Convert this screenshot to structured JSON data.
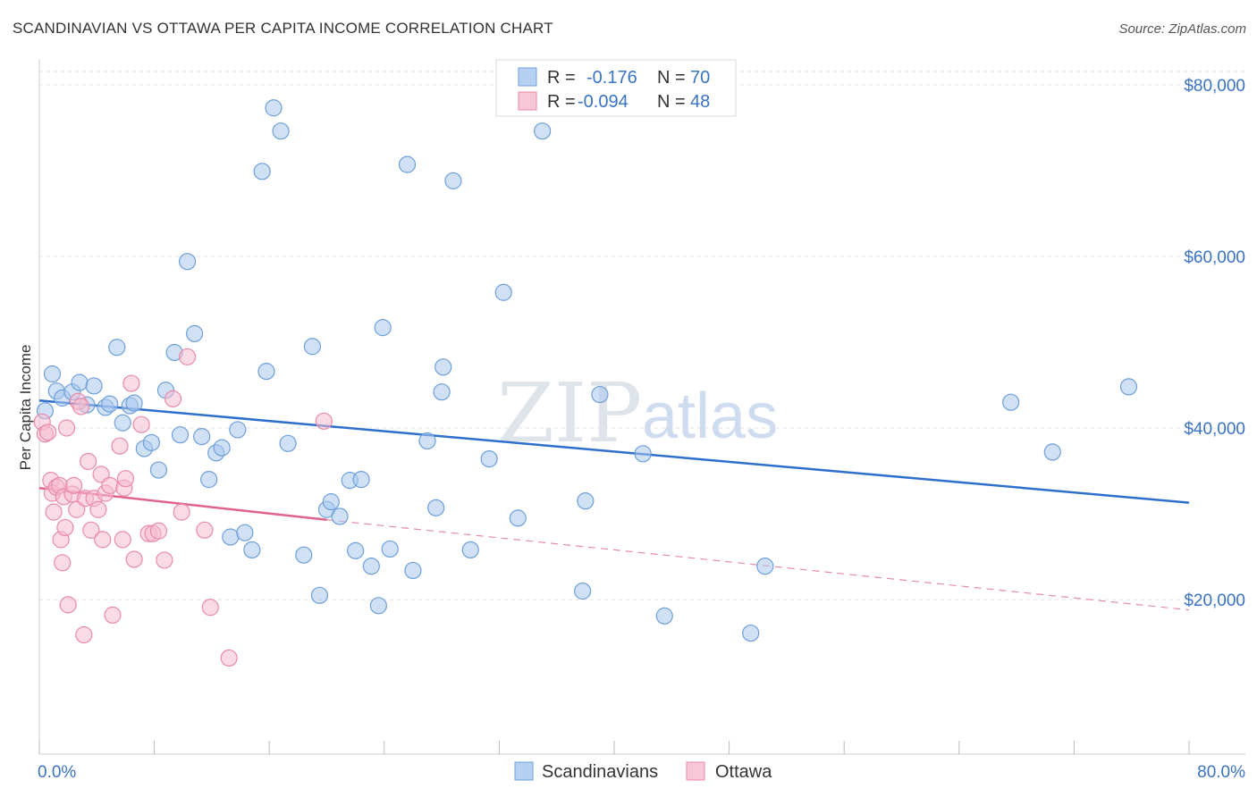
{
  "title": "SCANDINAVIAN VS OTTAWA PER CAPITA INCOME CORRELATION CHART",
  "source": "Source: ZipAtlas.com",
  "watermark": {
    "zip": "ZIP",
    "atlas": "atlas"
  },
  "legend_top": [
    {
      "r_label": "R =",
      "r_value": "-0.176",
      "n_label": "N =",
      "n_value": "70",
      "color": "#a9c8ef",
      "stroke": "#6e9fd9"
    },
    {
      "r_label": "R =",
      "r_value": "-0.094",
      "n_label": "N =",
      "n_value": "48",
      "color": "#f6bcd0",
      "stroke": "#e88aa9"
    }
  ],
  "legend_bottom": [
    {
      "label": "Scandinavians",
      "color": "#a9c8ef",
      "stroke": "#6e9fd9"
    },
    {
      "label": "Ottawa",
      "color": "#f6bcd0",
      "stroke": "#e88aa9"
    }
  ],
  "chart_data": {
    "type": "scatter",
    "title": "SCANDINAVIAN VS OTTAWA PER CAPITA INCOME CORRELATION CHART",
    "xlabel": "",
    "ylabel": "Per Capita Income",
    "xlim": [
      0,
      80
    ],
    "ylim": [
      2000,
      83000
    ],
    "x_tick_labels": [
      "0.0%",
      "80.0%"
    ],
    "y_ticks": [
      20000,
      40000,
      60000,
      80000
    ],
    "y_tick_labels": [
      "$20,000",
      "$40,000",
      "$60,000",
      "$80,000"
    ],
    "grid": true,
    "legend_position": "top-center",
    "series": [
      {
        "name": "Scandinavians",
        "color": "#a9c8ef",
        "stroke": "#6e9fd9",
        "trend": {
          "x": [
            0,
            80
          ],
          "y": [
            43200,
            31300
          ],
          "color": "#2f6fcc"
        },
        "points": [
          [
            0.4,
            42000
          ],
          [
            0.9,
            46300
          ],
          [
            1.2,
            44300
          ],
          [
            1.6,
            43500
          ],
          [
            2.3,
            44200
          ],
          [
            2.8,
            45300
          ],
          [
            3.3,
            42700
          ],
          [
            3.8,
            44900
          ],
          [
            4.6,
            42400
          ],
          [
            4.9,
            42800
          ],
          [
            5.4,
            49400
          ],
          [
            5.8,
            40600
          ],
          [
            6.3,
            42600
          ],
          [
            6.6,
            42900
          ],
          [
            7.3,
            37600
          ],
          [
            7.8,
            38300
          ],
          [
            8.3,
            35100
          ],
          [
            8.8,
            44400
          ],
          [
            9.4,
            48800
          ],
          [
            9.8,
            39200
          ],
          [
            10.3,
            59400
          ],
          [
            10.8,
            51000
          ],
          [
            11.3,
            39000
          ],
          [
            11.8,
            34000
          ],
          [
            12.3,
            37100
          ],
          [
            12.7,
            37700
          ],
          [
            13.3,
            27300
          ],
          [
            13.8,
            39800
          ],
          [
            14.3,
            27800
          ],
          [
            14.8,
            25800
          ],
          [
            15.5,
            69900
          ],
          [
            15.8,
            46600
          ],
          [
            16.3,
            77300
          ],
          [
            16.8,
            74600
          ],
          [
            17.3,
            38200
          ],
          [
            18.4,
            25200
          ],
          [
            19.0,
            49500
          ],
          [
            19.5,
            20500
          ],
          [
            20.0,
            30500
          ],
          [
            20.3,
            31400
          ],
          [
            20.9,
            29700
          ],
          [
            21.6,
            33900
          ],
          [
            22.0,
            25700
          ],
          [
            22.4,
            34000
          ],
          [
            23.1,
            23900
          ],
          [
            23.6,
            19300
          ],
          [
            23.9,
            51700
          ],
          [
            24.4,
            25900
          ],
          [
            25.6,
            70700
          ],
          [
            26.0,
            23400
          ],
          [
            27.0,
            38500
          ],
          [
            27.6,
            30700
          ],
          [
            28.0,
            44200
          ],
          [
            28.1,
            47100
          ],
          [
            28.8,
            68800
          ],
          [
            30.0,
            25800
          ],
          [
            31.3,
            36400
          ],
          [
            32.3,
            55800
          ],
          [
            33.3,
            29500
          ],
          [
            35.0,
            74600
          ],
          [
            37.8,
            21000
          ],
          [
            38.0,
            31500
          ],
          [
            39.0,
            43900
          ],
          [
            42.0,
            37000
          ],
          [
            43.5,
            18100
          ],
          [
            49.5,
            16100
          ],
          [
            50.5,
            23900
          ],
          [
            67.6,
            43000
          ],
          [
            70.5,
            37200
          ],
          [
            75.8,
            44800
          ]
        ]
      },
      {
        "name": "Ottawa",
        "color": "#f6bcd0",
        "stroke": "#e88aa9",
        "trend": {
          "x": [
            0,
            20
          ],
          "y": [
            33000,
            29300
          ],
          "color": "#e0628f"
        },
        "trend_extended": {
          "x": [
            20,
            80
          ],
          "y": [
            29300,
            18800
          ],
          "color": "#e88aa9"
        },
        "points": [
          [
            0.2,
            40700
          ],
          [
            0.4,
            39300
          ],
          [
            0.6,
            39500
          ],
          [
            0.8,
            33900
          ],
          [
            0.9,
            32400
          ],
          [
            1.0,
            30200
          ],
          [
            1.2,
            33100
          ],
          [
            1.4,
            33300
          ],
          [
            1.5,
            27000
          ],
          [
            1.6,
            24300
          ],
          [
            1.7,
            32000
          ],
          [
            1.8,
            28400
          ],
          [
            1.9,
            40000
          ],
          [
            2.0,
            19400
          ],
          [
            2.3,
            32300
          ],
          [
            2.4,
            33300
          ],
          [
            2.6,
            30500
          ],
          [
            2.7,
            43100
          ],
          [
            2.9,
            42500
          ],
          [
            3.1,
            15900
          ],
          [
            3.2,
            31800
          ],
          [
            3.4,
            36100
          ],
          [
            3.6,
            28100
          ],
          [
            3.8,
            31800
          ],
          [
            4.1,
            30500
          ],
          [
            4.3,
            34600
          ],
          [
            4.4,
            27000
          ],
          [
            4.6,
            32400
          ],
          [
            4.9,
            33300
          ],
          [
            5.1,
            18200
          ],
          [
            5.6,
            37900
          ],
          [
            5.8,
            27000
          ],
          [
            5.9,
            33000
          ],
          [
            6.0,
            34100
          ],
          [
            6.4,
            45200
          ],
          [
            6.6,
            24700
          ],
          [
            7.1,
            40400
          ],
          [
            7.6,
            27700
          ],
          [
            7.9,
            27700
          ],
          [
            8.3,
            28000
          ],
          [
            8.7,
            24600
          ],
          [
            9.3,
            43400
          ],
          [
            9.9,
            30200
          ],
          [
            10.3,
            48300
          ],
          [
            11.5,
            28100
          ],
          [
            11.9,
            19100
          ],
          [
            13.2,
            13200
          ],
          [
            19.8,
            40800
          ]
        ]
      }
    ]
  }
}
